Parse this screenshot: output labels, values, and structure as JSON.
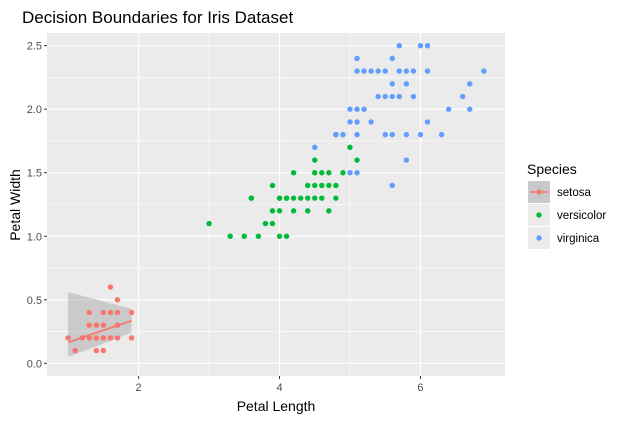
{
  "chart_data": {
    "type": "scatter",
    "title": "Decision Boundaries for Iris Dataset",
    "xlabel": "Petal Length",
    "ylabel": "Petal Width",
    "xlim": [
      0.7,
      7.2
    ],
    "ylim": [
      -0.1,
      2.6
    ],
    "xticks": [
      2,
      4,
      6
    ],
    "yticks": [
      0.0,
      0.5,
      1.0,
      1.5,
      2.0,
      2.5
    ],
    "xtick_labels": [
      "2",
      "4",
      "6"
    ],
    "ytick_labels": [
      "0.0",
      "0.5",
      "1.0",
      "1.5",
      "2.0",
      "2.5"
    ],
    "grid": true,
    "legend_position": "right",
    "legend_title": "Species",
    "series": [
      {
        "name": "setosa",
        "color": "#F8766D",
        "smooth_line": true,
        "line_start": [
          1.0,
          0.165
        ],
        "line_end": [
          1.9,
          0.335
        ],
        "band_start": [
          0.05,
          0.56
        ],
        "band_end": [
          0.24,
          0.43
        ],
        "points": [
          [
            1.0,
            0.2
          ],
          [
            1.1,
            0.1
          ],
          [
            1.2,
            0.2
          ],
          [
            1.2,
            0.2
          ],
          [
            1.3,
            0.2
          ],
          [
            1.3,
            0.3
          ],
          [
            1.3,
            0.4
          ],
          [
            1.4,
            0.2
          ],
          [
            1.4,
            0.1
          ],
          [
            1.4,
            0.3
          ],
          [
            1.4,
            0.2
          ],
          [
            1.5,
            0.2
          ],
          [
            1.5,
            0.1
          ],
          [
            1.5,
            0.4
          ],
          [
            1.5,
            0.3
          ],
          [
            1.6,
            0.2
          ],
          [
            1.6,
            0.4
          ],
          [
            1.6,
            0.6
          ],
          [
            1.7,
            0.2
          ],
          [
            1.7,
            0.4
          ],
          [
            1.7,
            0.3
          ],
          [
            1.7,
            0.5
          ],
          [
            1.9,
            0.2
          ],
          [
            1.9,
            0.4
          ],
          [
            1.6,
            0.2
          ],
          [
            1.4,
            0.3
          ],
          [
            1.5,
            0.2
          ]
        ]
      },
      {
        "name": "versicolor",
        "color": "#00BA38",
        "points": [
          [
            3.0,
            1.1
          ],
          [
            3.3,
            1.0
          ],
          [
            3.5,
            1.0
          ],
          [
            3.6,
            1.3
          ],
          [
            3.7,
            1.0
          ],
          [
            3.8,
            1.1
          ],
          [
            3.9,
            1.1
          ],
          [
            3.9,
            1.2
          ],
          [
            3.9,
            1.4
          ],
          [
            4.0,
            1.0
          ],
          [
            4.0,
            1.2
          ],
          [
            4.0,
            1.3
          ],
          [
            4.1,
            1.0
          ],
          [
            4.1,
            1.3
          ],
          [
            4.2,
            1.2
          ],
          [
            4.2,
            1.3
          ],
          [
            4.2,
            1.5
          ],
          [
            4.3,
            1.3
          ],
          [
            4.4,
            1.2
          ],
          [
            4.4,
            1.3
          ],
          [
            4.4,
            1.4
          ],
          [
            4.5,
            1.3
          ],
          [
            4.5,
            1.5
          ],
          [
            4.5,
            1.6
          ],
          [
            4.6,
            1.3
          ],
          [
            4.6,
            1.4
          ],
          [
            4.6,
            1.5
          ],
          [
            4.7,
            1.2
          ],
          [
            4.7,
            1.4
          ],
          [
            4.7,
            1.5
          ],
          [
            4.8,
            1.4
          ],
          [
            4.8,
            1.8
          ],
          [
            4.9,
            1.5
          ],
          [
            5.0,
            1.7
          ],
          [
            5.1,
            1.6
          ],
          [
            4.5,
            1.4
          ],
          [
            4.1,
            1.3
          ],
          [
            3.6,
            1.3
          ],
          [
            4.0,
            1.3
          ],
          [
            4.8,
            1.3
          ]
        ]
      },
      {
        "name": "virginica",
        "color": "#619CFF",
        "points": [
          [
            4.5,
            1.7
          ],
          [
            4.8,
            1.8
          ],
          [
            4.9,
            1.8
          ],
          [
            5.0,
            1.5
          ],
          [
            5.0,
            1.9
          ],
          [
            5.0,
            2.0
          ],
          [
            5.1,
            1.5
          ],
          [
            5.1,
            1.8
          ],
          [
            5.1,
            1.9
          ],
          [
            5.1,
            2.0
          ],
          [
            5.1,
            2.3
          ],
          [
            5.1,
            2.4
          ],
          [
            5.2,
            2.0
          ],
          [
            5.2,
            2.3
          ],
          [
            5.3,
            1.9
          ],
          [
            5.3,
            2.3
          ],
          [
            5.4,
            2.1
          ],
          [
            5.4,
            2.3
          ],
          [
            5.5,
            1.8
          ],
          [
            5.5,
            2.1
          ],
          [
            5.6,
            1.4
          ],
          [
            5.6,
            1.8
          ],
          [
            5.6,
            2.1
          ],
          [
            5.6,
            2.2
          ],
          [
            5.6,
            2.4
          ],
          [
            5.7,
            2.1
          ],
          [
            5.7,
            2.3
          ],
          [
            5.7,
            2.5
          ],
          [
            5.8,
            1.6
          ],
          [
            5.8,
            1.8
          ],
          [
            5.8,
            2.2
          ],
          [
            5.9,
            2.1
          ],
          [
            5.9,
            2.3
          ],
          [
            6.0,
            1.8
          ],
          [
            6.0,
            2.5
          ],
          [
            6.1,
            1.9
          ],
          [
            6.1,
            2.3
          ],
          [
            6.1,
            2.5
          ],
          [
            6.3,
            1.8
          ],
          [
            6.6,
            2.1
          ],
          [
            6.7,
            2.0
          ],
          [
            6.7,
            2.2
          ],
          [
            6.9,
            2.3
          ],
          [
            6.4,
            2.0
          ],
          [
            5.5,
            2.3
          ],
          [
            5.8,
            2.3
          ]
        ]
      }
    ]
  }
}
